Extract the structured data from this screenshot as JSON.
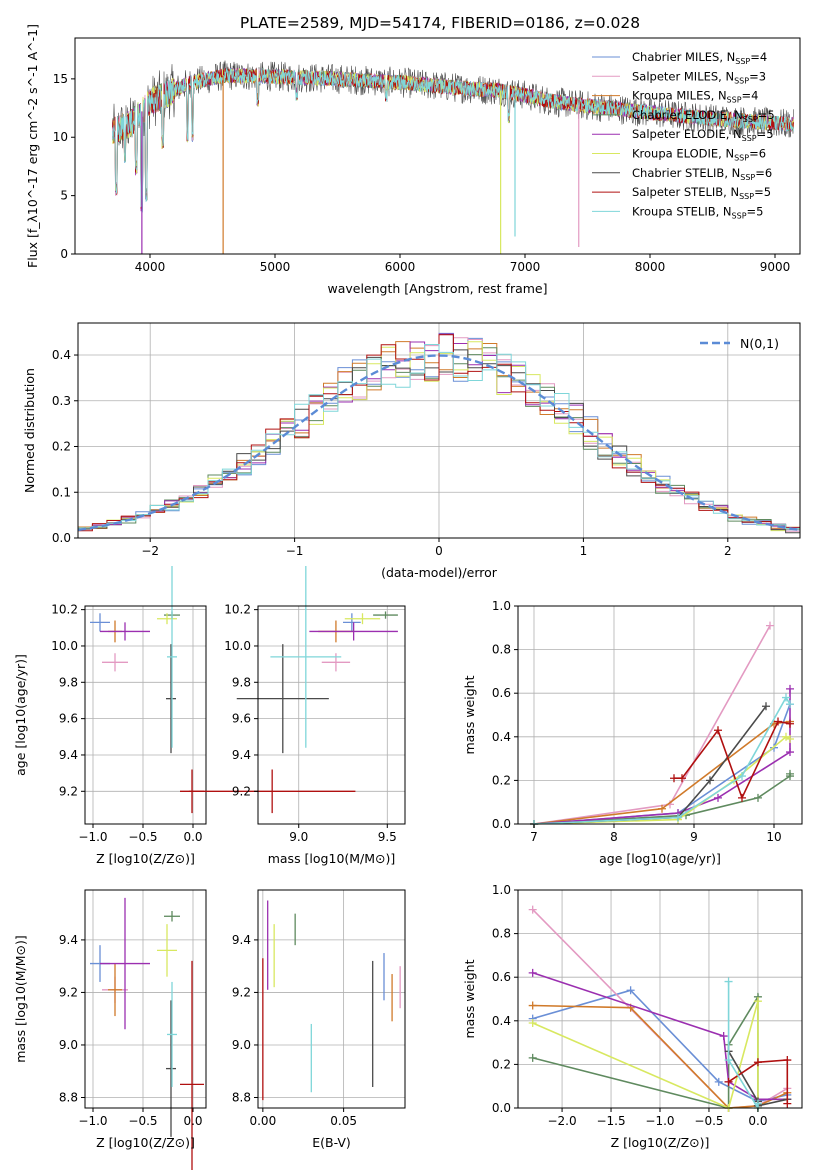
{
  "figure_title": "PLATE=2589, MJD=54174, FIBERID=0186, z=0.028",
  "chart_data": [
    {
      "id": "spectrum",
      "type": "line",
      "xlabel": "wavelength [Angstrom, rest frame]",
      "ylabel": "Flux [f_λ10^-17 erg cm^-2 s^-1 A^-1]",
      "xlim": [
        3400,
        9200
      ],
      "ylim": [
        0,
        18.5
      ],
      "xticks": [
        4000,
        5000,
        6000,
        7000,
        8000,
        9000
      ],
      "yticks": [
        0,
        5,
        10,
        15
      ],
      "grid": false,
      "legend_position": "top-right",
      "data_range_x": [
        3700,
        9150
      ],
      "continuum": [
        [
          3700,
          10.5
        ],
        [
          3850,
          11.2
        ],
        [
          4000,
          13.0
        ],
        [
          4300,
          14.6
        ],
        [
          4600,
          15.3
        ],
        [
          5000,
          15.2
        ],
        [
          5500,
          15.0
        ],
        [
          6000,
          14.7
        ],
        [
          6500,
          14.2
        ],
        [
          6800,
          14.0
        ],
        [
          7000,
          13.6
        ],
        [
          7200,
          13.1
        ],
        [
          7400,
          12.8
        ],
        [
          7600,
          12.6
        ],
        [
          8000,
          12.1
        ],
        [
          8500,
          11.6
        ],
        [
          9000,
          11.2
        ],
        [
          9150,
          11.1
        ]
      ],
      "absorption_features": [
        [
          3730,
          5.0
        ],
        [
          3800,
          7.8
        ],
        [
          3890,
          6.8
        ],
        [
          3934,
          3.5
        ],
        [
          3969,
          4.5
        ],
        [
          4102,
          9.0
        ],
        [
          4300,
          9.5
        ],
        [
          4340,
          9.6
        ],
        [
          4861,
          12.6
        ],
        [
          5175,
          13.1
        ],
        [
          5890,
          13.0
        ],
        [
          6870,
          11.2
        ]
      ],
      "spikes": [
        [
          3935,
          "Salpeter ELODIE",
          0
        ],
        [
          4585,
          "Kroupa MILES",
          0
        ],
        [
          6805,
          "Kroupa ELODIE",
          0
        ],
        [
          6920,
          "Kroupa STELIB",
          1.5
        ],
        [
          7430,
          "Salpeter MILES",
          0.6
        ]
      ],
      "series": [
        {
          "name": "Chabrier MILES, N_SSP=4",
          "color": "#6a8fd6"
        },
        {
          "name": "Salpeter MILES, N_SSP=3",
          "color": "#e39ac2"
        },
        {
          "name": "Kroupa MILES, N_SSP=4",
          "color": "#d07a2a"
        },
        {
          "name": "Chabrier ELODIE, N_SSP=5",
          "color": "#5f8a5f"
        },
        {
          "name": "Salpeter ELODIE, N_SSP=5",
          "color": "#9b2fb0"
        },
        {
          "name": "Kroupa ELODIE, N_SSP=6",
          "color": "#d8e860"
        },
        {
          "name": "Chabrier STELIB, N_SSP=6",
          "color": "#4a4a4a"
        },
        {
          "name": "Salpeter STELIB, N_SSP=5",
          "color": "#b01010"
        },
        {
          "name": "Kroupa STELIB, N_SSP=5",
          "color": "#7fd6d9"
        }
      ]
    },
    {
      "id": "residuals",
      "type": "histogram",
      "xlabel": "(data-model)/error",
      "ylabel": "Normed distribution",
      "xlim": [
        -2.5,
        2.5
      ],
      "ylim": [
        0,
        0.47
      ],
      "xticks": [
        -2,
        -1,
        0,
        1,
        2
      ],
      "yticks": [
        0.0,
        0.1,
        0.2,
        0.3,
        0.4
      ],
      "grid": true,
      "bins": 50,
      "reference_label": "N(0,1)",
      "reference_color": "#5b8bd6",
      "legend_position": "top-right"
    },
    {
      "id": "age_vs_Z",
      "type": "scatter",
      "xlabel": "Z [log10(Z/Z⊙)]",
      "ylabel": "age  [log10(age/yr)]",
      "xlim": [
        -1.08,
        0.13
      ],
      "ylim": [
        9.02,
        10.22
      ],
      "xticks": [
        -1.0,
        -0.5,
        0.0
      ],
      "yticks": [
        9.2,
        9.4,
        9.6,
        9.8,
        10.0,
        10.2
      ],
      "grid": true,
      "points": [
        {
          "color": "#6a8fd6",
          "x": -0.93,
          "y": 10.13,
          "xerr": 0.1,
          "yerr": 0.05
        },
        {
          "color": "#e39ac2",
          "x": -0.78,
          "y": 9.91,
          "xerr": 0.13,
          "yerr": 0.05
        },
        {
          "color": "#d07a2a",
          "x": -0.78,
          "y": 10.08,
          "xerr": 0.07,
          "yerr": 0.06
        },
        {
          "color": "#5f8a5f",
          "x": -0.21,
          "y": 10.17,
          "xerr": 0.08,
          "yerr": 0.02
        },
        {
          "color": "#9b2fb0",
          "x": -0.68,
          "y": 10.08,
          "xerr": 0.25,
          "yerr": 0.05
        },
        {
          "color": "#d8e860",
          "x": -0.26,
          "y": 10.15,
          "xerr": 0.1,
          "yerr": 0.03
        },
        {
          "color": "#4a4a4a",
          "x": -0.22,
          "y": 9.71,
          "xerr": 0.05,
          "yerr": 0.3
        },
        {
          "color": "#b01010",
          "x": -0.01,
          "y": 9.2,
          "xerr": 0.12,
          "yerr": 0.12
        },
        {
          "color": "#7fd6d9",
          "x": -0.21,
          "y": 9.94,
          "xerr": 0.05,
          "yerr": 0.5
        }
      ]
    },
    {
      "id": "age_vs_mass",
      "type": "scatter",
      "xlabel": "mass [log10(M/M⊙)]",
      "ylabel": "",
      "xlim": [
        8.77,
        9.6
      ],
      "ylim": [
        9.02,
        10.22
      ],
      "xticks": [
        9.0,
        9.5
      ],
      "yticks": [
        9.2,
        9.4,
        9.6,
        9.8,
        10.0,
        10.2
      ],
      "grid": true,
      "points": [
        {
          "color": "#6a8fd6",
          "x": 9.3,
          "y": 10.13,
          "xerr": 0.05,
          "yerr": 0.05
        },
        {
          "color": "#e39ac2",
          "x": 9.21,
          "y": 9.91,
          "xerr": 0.08,
          "yerr": 0.05
        },
        {
          "color": "#d07a2a",
          "x": 9.21,
          "y": 10.08,
          "xerr": 0.1,
          "yerr": 0.06
        },
        {
          "color": "#5f8a5f",
          "x": 9.49,
          "y": 10.17,
          "xerr": 0.07,
          "yerr": 0.02
        },
        {
          "color": "#9b2fb0",
          "x": 9.31,
          "y": 10.08,
          "xerr": 0.25,
          "yerr": 0.05
        },
        {
          "color": "#d8e860",
          "x": 9.36,
          "y": 10.15,
          "xerr": 0.1,
          "yerr": 0.03
        },
        {
          "color": "#4a4a4a",
          "x": 8.91,
          "y": 9.71,
          "xerr": 0.26,
          "yerr": 0.3
        },
        {
          "color": "#b01010",
          "x": 8.85,
          "y": 9.2,
          "xerr": 0.47,
          "yerr": 0.12
        },
        {
          "color": "#7fd6d9",
          "x": 9.04,
          "y": 9.94,
          "xerr": 0.2,
          "yerr": 0.5
        }
      ]
    },
    {
      "id": "mass_weight_vs_age",
      "type": "line",
      "xlabel": "age  [log10(age/yr)]",
      "ylabel": "mass weight",
      "xlim": [
        6.8,
        10.35
      ],
      "ylim": [
        0,
        1.0
      ],
      "xticks": [
        7,
        8,
        9,
        10
      ],
      "yticks": [
        0.0,
        0.2,
        0.4,
        0.6,
        0.8,
        1.0
      ],
      "grid": true,
      "series": [
        {
          "color": "#6a8fd6",
          "x": [
            7.0,
            8.8,
            10.0,
            10.2
          ],
          "y": [
            0.0,
            0.05,
            0.35,
            0.55
          ]
        },
        {
          "color": "#e39ac2",
          "x": [
            7.0,
            8.7,
            9.95
          ],
          "y": [
            0.0,
            0.09,
            0.91
          ]
        },
        {
          "color": "#d07a2a",
          "x": [
            7.0,
            8.6,
            10.0,
            10.2
          ],
          "y": [
            0.0,
            0.07,
            0.46,
            0.47
          ]
        },
        {
          "color": "#5f8a5f",
          "x": [
            7.0,
            8.9,
            9.8,
            10.2,
            10.2
          ],
          "y": [
            0.0,
            0.04,
            0.12,
            0.22,
            0.23
          ]
        },
        {
          "color": "#9b2fb0",
          "x": [
            7.0,
            8.8,
            9.3,
            10.2,
            10.2
          ],
          "y": [
            0.0,
            0.05,
            0.12,
            0.33,
            0.62
          ]
        },
        {
          "color": "#d8e860",
          "x": [
            7.0,
            8.8,
            9.5,
            10.15,
            10.2
          ],
          "y": [
            0.0,
            0.02,
            0.2,
            0.4,
            0.39
          ]
        },
        {
          "color": "#4a4a4a",
          "x": [
            7.0,
            8.8,
            9.2,
            9.9
          ],
          "y": [
            0.0,
            0.03,
            0.2,
            0.54
          ]
        },
        {
          "color": "#b01010",
          "x": [
            8.75,
            8.85,
            9.3,
            9.6,
            10.05,
            10.2
          ],
          "y": [
            0.21,
            0.21,
            0.43,
            0.12,
            0.47,
            0.46
          ]
        },
        {
          "color": "#7fd6d9",
          "x": [
            7.0,
            8.8,
            9.6,
            10.15,
            10.2
          ],
          "y": [
            0.0,
            0.03,
            0.22,
            0.58,
            0.55
          ]
        }
      ]
    },
    {
      "id": "mass_vs_Z",
      "type": "scatter",
      "xlabel": "Z [log10(Z/Z⊙)]",
      "ylabel": "mass [log10(M/M⊙)]",
      "xlim": [
        -1.08,
        0.13
      ],
      "ylim": [
        8.76,
        9.59
      ],
      "xticks": [
        -1.0,
        -0.5,
        0.0
      ],
      "yticks": [
        8.8,
        9.0,
        9.2,
        9.4
      ],
      "grid": true,
      "points": [
        {
          "color": "#6a8fd6",
          "x": -0.93,
          "y": 9.31,
          "xerr": 0.1,
          "yerr": 0.07
        },
        {
          "color": "#e39ac2",
          "x": -0.78,
          "y": 9.21,
          "xerr": 0.13,
          "yerr": 0.05
        },
        {
          "color": "#d07a2a",
          "x": -0.78,
          "y": 9.21,
          "xerr": 0.07,
          "yerr": 0.1
        },
        {
          "color": "#5f8a5f",
          "x": -0.21,
          "y": 9.49,
          "xerr": 0.08,
          "yerr": 0.02
        },
        {
          "color": "#9b2fb0",
          "x": -0.68,
          "y": 9.31,
          "xerr": 0.25,
          "yerr": 0.25
        },
        {
          "color": "#d8e860",
          "x": -0.26,
          "y": 9.36,
          "xerr": 0.1,
          "yerr": 0.1
        },
        {
          "color": "#4a4a4a",
          "x": -0.22,
          "y": 8.91,
          "xerr": 0.05,
          "yerr": 0.26
        },
        {
          "color": "#b01010",
          "x": -0.01,
          "y": 8.85,
          "xerr": 0.12,
          "yerr": 0.47
        },
        {
          "color": "#7fd6d9",
          "x": -0.21,
          "y": 9.04,
          "xerr": 0.05,
          "yerr": 0.2
        }
      ]
    },
    {
      "id": "mass_vs_ebv",
      "type": "scatter",
      "xlabel": "E(B-V)",
      "ylabel": "",
      "xlim": [
        -0.003,
        0.088
      ],
      "ylim": [
        8.76,
        9.59
      ],
      "xticks": [
        0.0,
        0.05
      ],
      "yticks": [
        8.8,
        9.0,
        9.2,
        9.4
      ],
      "grid": true,
      "points": [
        {
          "color": "#6a8fd6",
          "x": 0.075,
          "y": 9.26,
          "xerr": 0.0,
          "yerr": 0.09
        },
        {
          "color": "#e39ac2",
          "x": 0.085,
          "y": 9.22,
          "xerr": 0.0,
          "yerr": 0.08
        },
        {
          "color": "#d07a2a",
          "x": 0.08,
          "y": 9.18,
          "xerr": 0.0,
          "yerr": 0.09
        },
        {
          "color": "#5f8a5f",
          "x": 0.02,
          "y": 9.44,
          "xerr": 0.0,
          "yerr": 0.06
        },
        {
          "color": "#9b2fb0",
          "x": 0.003,
          "y": 9.38,
          "xerr": 0.0,
          "yerr": 0.17
        },
        {
          "color": "#d8e860",
          "x": 0.007,
          "y": 9.34,
          "xerr": 0.0,
          "yerr": 0.12
        },
        {
          "color": "#4a4a4a",
          "x": 0.068,
          "y": 9.08,
          "xerr": 0.0,
          "yerr": 0.24
        },
        {
          "color": "#b01010",
          "x": 0.0,
          "y": 9.06,
          "xerr": 0.0,
          "yerr": 0.27
        },
        {
          "color": "#7fd6d9",
          "x": 0.03,
          "y": 8.95,
          "xerr": 0.0,
          "yerr": 0.13
        }
      ]
    },
    {
      "id": "mass_weight_vs_Z",
      "type": "line",
      "xlabel": "Z [log10(Z/Z⊙)]",
      "ylabel": "mass weight",
      "xlim": [
        -2.45,
        0.45
      ],
      "ylim": [
        0,
        1.0
      ],
      "xticks": [
        -2.0,
        -1.5,
        -1.0,
        -0.5,
        0.0
      ],
      "yticks": [
        0.0,
        0.2,
        0.4,
        0.6,
        0.8,
        1.0
      ],
      "grid": true,
      "series": [
        {
          "color": "#6a8fd6",
          "x": [
            -2.3,
            -1.3,
            -0.4,
            0.0,
            0.3
          ],
          "y": [
            0.41,
            0.54,
            0.12,
            0.03,
            0.06
          ]
        },
        {
          "color": "#e39ac2",
          "x": [
            -2.3,
            -0.3,
            0.0,
            0.3
          ],
          "y": [
            0.91,
            0.0,
            0.01,
            0.09
          ]
        },
        {
          "color": "#d07a2a",
          "x": [
            -2.3,
            -1.3,
            -0.3,
            0.0,
            0.3
          ],
          "y": [
            0.47,
            0.46,
            0.0,
            0.01,
            0.07
          ]
        },
        {
          "color": "#5f8a5f",
          "x": [
            -2.3,
            -0.3,
            -0.3,
            0.0,
            0.0
          ],
          "y": [
            0.23,
            0.0,
            0.29,
            0.51,
            0.04
          ]
        },
        {
          "color": "#9b2fb0",
          "x": [
            -2.3,
            -0.35,
            -0.3,
            0.0,
            0.3
          ],
          "y": [
            0.62,
            0.33,
            0.12,
            0.04,
            0.04
          ]
        },
        {
          "color": "#d8e860",
          "x": [
            -2.3,
            -0.3,
            0.0,
            0.0
          ],
          "y": [
            0.39,
            0.0,
            0.49,
            0.0
          ]
        },
        {
          "color": "#4a4a4a",
          "x": [
            -0.3,
            0.0,
            0.0,
            0.3
          ],
          "y": [
            0.26,
            0.03,
            0.01,
            0.04
          ]
        },
        {
          "color": "#b01010",
          "x": [
            -0.3,
            0.0,
            0.3,
            0.3
          ],
          "y": [
            0.12,
            0.21,
            0.22,
            0.02
          ]
        },
        {
          "color": "#7fd6d9",
          "x": [
            -0.3,
            -0.3,
            0.0,
            0.0
          ],
          "y": [
            0.58,
            0.22,
            0.0,
            0.02
          ]
        }
      ]
    }
  ]
}
